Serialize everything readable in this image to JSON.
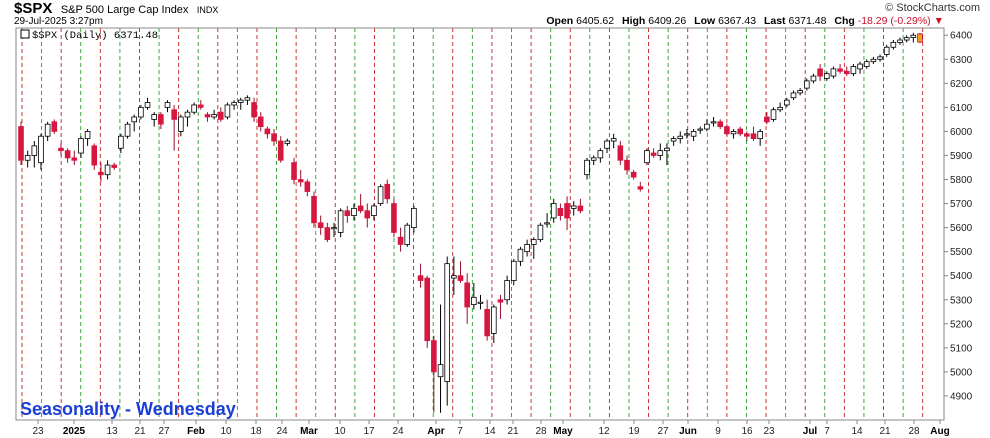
{
  "header": {
    "ticker": "$SPX",
    "description": "S&P 500 Large Cap Index",
    "exchange": "INDX",
    "date": "29-Jul-2025 3:27pm",
    "brand": "© StockCharts.com",
    "open_label": "Open",
    "open": "6405.62",
    "high_label": "High",
    "high": "6409.26",
    "low_label": "Low",
    "low": "6367.43",
    "last_label": "Last",
    "last": "6371.48",
    "chg_label": "Chg",
    "chg": "-18.29 (-0.29%)"
  },
  "legend": {
    "text": "$SPX (Daily) 6371.48"
  },
  "annotation": "Seasonality - Wednesday",
  "colors": {
    "down": "#d6173f",
    "up": "#ffffff",
    "green_line": "#2a9d2a",
    "red_line": "#c81e1e"
  },
  "chart_data": {
    "type": "candlestick",
    "title": "$SPX",
    "y_axis": {
      "position": "right",
      "ylim": [
        4800,
        6430
      ],
      "ticks": [
        4900,
        5000,
        5100,
        5200,
        5300,
        5400,
        5500,
        5600,
        5700,
        5800,
        5900,
        6000,
        6100,
        6200,
        6300,
        6400
      ]
    },
    "x_labels": [
      {
        "label": "23",
        "bold": false
      },
      {
        "label": "2025",
        "bold": true
      },
      {
        "label": "13",
        "bold": false
      },
      {
        "label": "21",
        "bold": false
      },
      {
        "label": "27",
        "bold": false
      },
      {
        "label": "Feb",
        "bold": true
      },
      {
        "label": "10",
        "bold": false
      },
      {
        "label": "18",
        "bold": false
      },
      {
        "label": "24",
        "bold": false
      },
      {
        "label": "Mar",
        "bold": true
      },
      {
        "label": "10",
        "bold": false
      },
      {
        "label": "17",
        "bold": false
      },
      {
        "label": "24",
        "bold": false
      },
      {
        "label": "Apr",
        "bold": true
      },
      {
        "label": "7",
        "bold": false
      },
      {
        "label": "14",
        "bold": false
      },
      {
        "label": "21",
        "bold": false
      },
      {
        "label": "28",
        "bold": false
      },
      {
        "label": "May",
        "bold": true
      },
      {
        "label": "12",
        "bold": false
      },
      {
        "label": "19",
        "bold": false
      },
      {
        "label": "27",
        "bold": false
      },
      {
        "label": "Jun",
        "bold": true
      },
      {
        "label": "9",
        "bold": false
      },
      {
        "label": "16",
        "bold": false
      },
      {
        "label": "23",
        "bold": false
      },
      {
        "label": "Jul",
        "bold": true
      },
      {
        "label": "7",
        "bold": false
      },
      {
        "label": "14",
        "bold": false
      },
      {
        "label": "21",
        "bold": false
      },
      {
        "label": "28",
        "bold": false
      },
      {
        "label": "Aug",
        "bold": true
      }
    ],
    "seasonality_lines": "green dashed = Wednesdays, red dashed = week boundaries",
    "candles": [
      [
        6020,
        6040,
        5860,
        5880
      ],
      [
        5880,
        5920,
        5850,
        5900
      ],
      [
        5900,
        5960,
        5850,
        5940
      ],
      [
        5870,
        5990,
        5840,
        5980
      ],
      [
        5980,
        6040,
        5960,
        6030
      ],
      [
        6040,
        6050,
        5990,
        6000
      ],
      [
        5930,
        5950,
        5900,
        5920
      ],
      [
        5920,
        5930,
        5870,
        5890
      ],
      [
        5890,
        5920,
        5860,
        5880
      ],
      [
        5910,
        5980,
        5890,
        5970
      ],
      [
        5970,
        6010,
        5940,
        6000
      ],
      [
        5940,
        5950,
        5840,
        5860
      ],
      [
        5830,
        5870,
        5790,
        5820
      ],
      [
        5820,
        5880,
        5800,
        5860
      ],
      [
        5860,
        5870,
        5840,
        5850
      ],
      [
        5930,
        5990,
        5910,
        5980
      ],
      [
        5980,
        6040,
        5970,
        6030
      ],
      [
        6040,
        6070,
        6000,
        6060
      ],
      [
        6060,
        6110,
        6050,
        6100
      ],
      [
        6100,
        6140,
        6090,
        6120
      ],
      [
        6050,
        6080,
        6020,
        6070
      ],
      [
        6070,
        6080,
        6010,
        6030
      ],
      [
        6100,
        6130,
        6080,
        6120
      ],
      [
        6090,
        6110,
        5920,
        6050
      ],
      [
        6000,
        6070,
        5980,
        6060
      ],
      [
        6060,
        6090,
        6020,
        6080
      ],
      [
        6080,
        6120,
        6070,
        6110
      ],
      [
        6110,
        6130,
        6090,
        6100
      ],
      [
        6070,
        6080,
        6040,
        6060
      ],
      [
        6060,
        6090,
        6050,
        6070
      ],
      [
        6080,
        6100,
        6040,
        6050
      ],
      [
        6060,
        6120,
        6050,
        6110
      ],
      [
        6110,
        6130,
        6090,
        6120
      ],
      [
        6120,
        6140,
        6090,
        6130
      ],
      [
        6130,
        6150,
        6110,
        6140
      ],
      [
        6120,
        6140,
        6040,
        6060
      ],
      [
        6060,
        6080,
        6000,
        6020
      ],
      [
        6010,
        6020,
        5970,
        5990
      ],
      [
        5990,
        6010,
        5940,
        5960
      ],
      [
        5960,
        5980,
        5870,
        5880
      ],
      [
        5950,
        5970,
        5940,
        5960
      ],
      [
        5870,
        5890,
        5780,
        5800
      ],
      [
        5800,
        5840,
        5770,
        5790
      ],
      [
        5790,
        5800,
        5730,
        5750
      ],
      [
        5730,
        5750,
        5600,
        5620
      ],
      [
        5620,
        5650,
        5570,
        5600
      ],
      [
        5600,
        5620,
        5540,
        5550
      ],
      [
        5600,
        5620,
        5560,
        5600
      ],
      [
        5580,
        5680,
        5560,
        5670
      ],
      [
        5670,
        5690,
        5620,
        5650
      ],
      [
        5650,
        5700,
        5630,
        5680
      ],
      [
        5690,
        5740,
        5660,
        5670
      ],
      [
        5670,
        5700,
        5600,
        5640
      ],
      [
        5650,
        5700,
        5630,
        5690
      ],
      [
        5700,
        5780,
        5690,
        5770
      ],
      [
        5780,
        5800,
        5700,
        5720
      ],
      [
        5700,
        5720,
        5560,
        5580
      ],
      [
        5560,
        5600,
        5500,
        5530
      ],
      [
        5530,
        5620,
        5520,
        5610
      ],
      [
        5600,
        5690,
        5580,
        5680
      ],
      [
        5400,
        5450,
        5350,
        5380
      ],
      [
        5390,
        5400,
        5100,
        5130
      ],
      [
        5130,
        5150,
        4830,
        5000
      ],
      [
        4980,
        5280,
        4830,
        5030
      ],
      [
        4960,
        5480,
        4860,
        5450
      ],
      [
        5390,
        5480,
        5320,
        5400
      ],
      [
        5400,
        5460,
        5370,
        5380
      ],
      [
        5370,
        5410,
        5200,
        5270
      ],
      [
        5280,
        5370,
        5260,
        5310
      ],
      [
        5290,
        5320,
        5260,
        5290
      ],
      [
        5260,
        5300,
        5130,
        5150
      ],
      [
        5160,
        5280,
        5120,
        5270
      ],
      [
        5300,
        5320,
        5220,
        5290
      ],
      [
        5300,
        5400,
        5280,
        5380
      ],
      [
        5380,
        5470,
        5360,
        5460
      ],
      [
        5460,
        5520,
        5440,
        5510
      ],
      [
        5500,
        5550,
        5480,
        5530
      ],
      [
        5530,
        5560,
        5470,
        5550
      ],
      [
        5550,
        5620,
        5540,
        5610
      ],
      [
        5620,
        5660,
        5600,
        5620
      ],
      [
        5640,
        5720,
        5620,
        5700
      ],
      [
        5680,
        5700,
        5630,
        5650
      ],
      [
        5700,
        5730,
        5590,
        5640
      ],
      [
        5680,
        5710,
        5650,
        5690
      ],
      [
        5690,
        5720,
        5660,
        5670
      ],
      [
        5820,
        5890,
        5800,
        5880
      ],
      [
        5880,
        5900,
        5860,
        5890
      ],
      [
        5890,
        5930,
        5870,
        5920
      ],
      [
        5930,
        5970,
        5910,
        5960
      ],
      [
        5960,
        5990,
        5930,
        5970
      ],
      [
        5940,
        5960,
        5860,
        5880
      ],
      [
        5880,
        5900,
        5820,
        5840
      ],
      [
        5830,
        5840,
        5800,
        5810
      ],
      [
        5770,
        5790,
        5750,
        5760
      ],
      [
        5870,
        5930,
        5860,
        5920
      ],
      [
        5910,
        5930,
        5890,
        5900
      ],
      [
        5900,
        5950,
        5880,
        5920
      ],
      [
        5920,
        5950,
        5860,
        5930
      ],
      [
        5960,
        5980,
        5940,
        5970
      ],
      [
        5970,
        6000,
        5950,
        5980
      ],
      [
        5990,
        6010,
        5970,
        5990
      ],
      [
        5980,
        6010,
        5960,
        6000
      ],
      [
        6010,
        6020,
        5990,
        6010
      ],
      [
        6010,
        6050,
        6000,
        6030
      ],
      [
        6040,
        6060,
        6020,
        6040
      ],
      [
        6040,
        6050,
        6010,
        6020
      ],
      [
        6020,
        6030,
        5980,
        5990
      ],
      [
        5990,
        6010,
        5970,
        6000
      ],
      [
        6010,
        6020,
        5980,
        5990
      ],
      [
        5990,
        6000,
        5960,
        5980
      ],
      [
        5990,
        6020,
        5960,
        5970
      ],
      [
        5970,
        6010,
        5940,
        6000
      ],
      [
        6060,
        6080,
        6030,
        6040
      ],
      [
        6050,
        6100,
        6040,
        6090
      ],
      [
        6090,
        6120,
        6080,
        6100
      ],
      [
        6110,
        6140,
        6100,
        6130
      ],
      [
        6140,
        6170,
        6130,
        6160
      ],
      [
        6160,
        6180,
        6150,
        6170
      ],
      [
        6180,
        6220,
        6170,
        6210
      ],
      [
        6210,
        6240,
        6200,
        6230
      ],
      [
        6260,
        6280,
        6210,
        6230
      ],
      [
        6220,
        6250,
        6210,
        6240
      ],
      [
        6230,
        6270,
        6220,
        6260
      ],
      [
        6260,
        6280,
        6240,
        6250
      ],
      [
        6250,
        6270,
        6230,
        6240
      ],
      [
        6240,
        6280,
        6230,
        6270
      ],
      [
        6260,
        6290,
        6240,
        6280
      ],
      [
        6270,
        6300,
        6260,
        6290
      ],
      [
        6290,
        6310,
        6280,
        6300
      ],
      [
        6300,
        6320,
        6290,
        6310
      ],
      [
        6320,
        6360,
        6310,
        6350
      ],
      [
        6350,
        6380,
        6340,
        6370
      ],
      [
        6370,
        6390,
        6360,
        6380
      ],
      [
        6380,
        6400,
        6370,
        6390
      ],
      [
        6390,
        6410,
        6370,
        6400
      ],
      [
        6405.62,
        6409.26,
        6367.43,
        6371.48
      ]
    ]
  }
}
